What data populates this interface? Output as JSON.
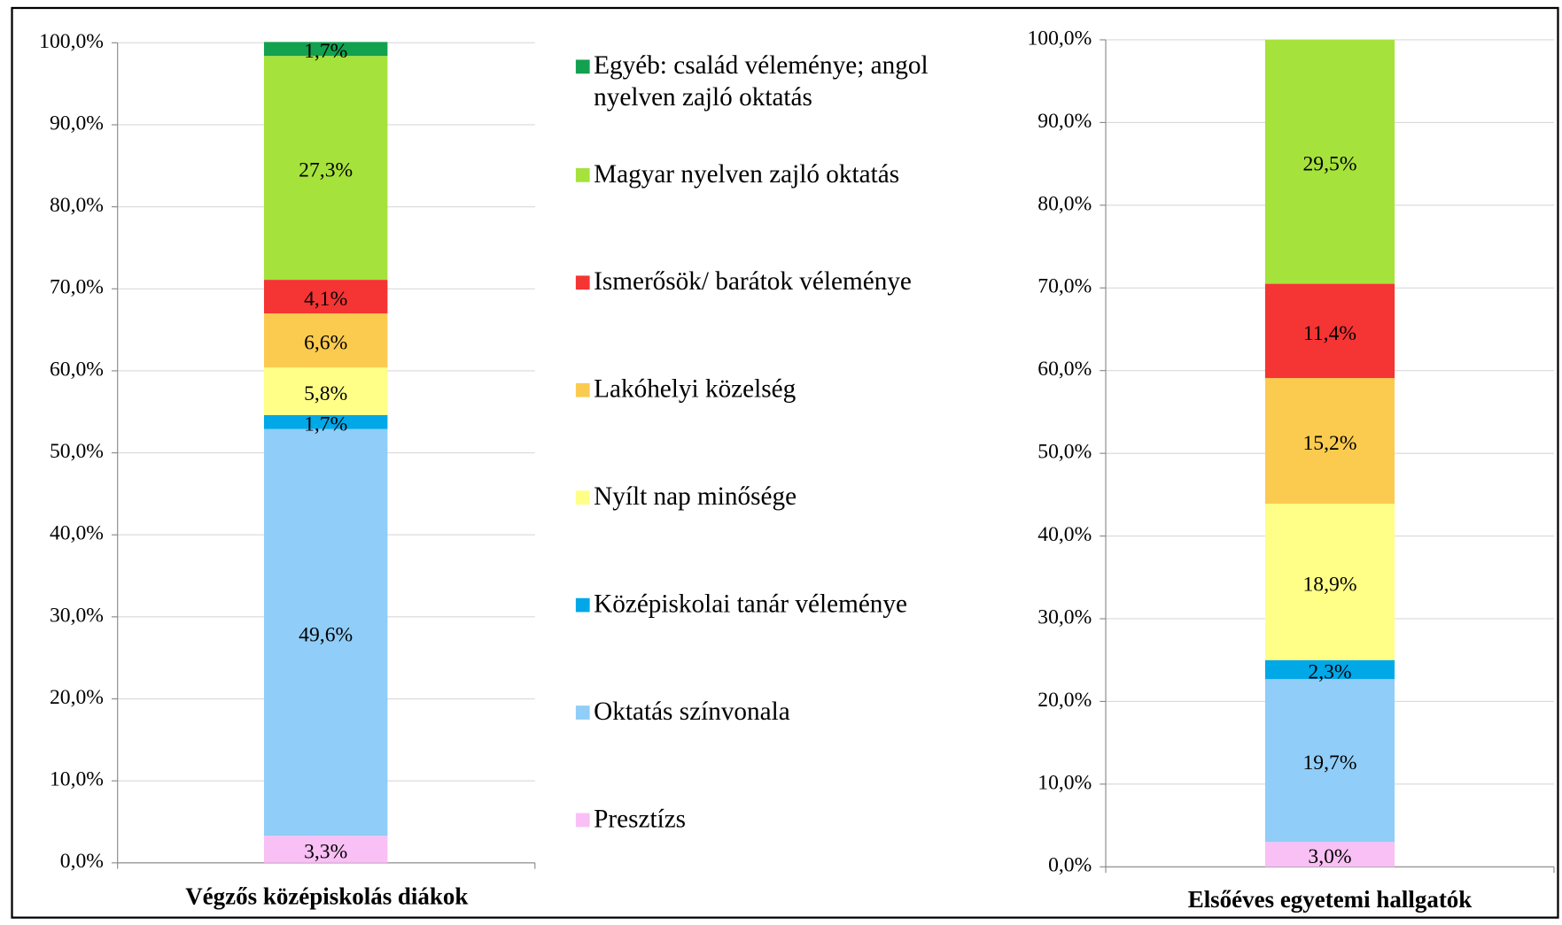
{
  "chart_data": [
    {
      "type": "bar",
      "stacked": true,
      "xlabel": "Végzős középiskolás diákok",
      "categories": [
        null
      ],
      "ylim": [
        0,
        100
      ],
      "yticks": [
        {
          "value": 0,
          "label": "0,0%"
        },
        {
          "value": 10,
          "label": "10,0%"
        },
        {
          "value": 20,
          "label": "20,0%"
        },
        {
          "value": 30,
          "label": "30,0%"
        },
        {
          "value": 40,
          "label": "40,0%"
        },
        {
          "value": 50,
          "label": "50,0%"
        },
        {
          "value": 60,
          "label": "60,0%"
        },
        {
          "value": 70,
          "label": "70,0%"
        },
        {
          "value": 80,
          "label": "80,0%"
        },
        {
          "value": 90,
          "label": "90,0%"
        },
        {
          "value": 100,
          "label": "100,0%"
        }
      ],
      "grid": true,
      "series": [
        {
          "name": "Presztízs",
          "color": "#f9c0f5",
          "values": [
            3.3
          ],
          "value_labels": [
            "3,3%"
          ]
        },
        {
          "name": "Oktatás színvonala",
          "color": "#90cdf8",
          "values": [
            49.6
          ],
          "value_labels": [
            "49,6%"
          ]
        },
        {
          "name": "Középiskolai tanár véleménye",
          "color": "#00a8e8",
          "values": [
            1.7
          ],
          "value_labels": [
            "1,7%"
          ]
        },
        {
          "name": "Nyílt nap minősége",
          "color": "#ffff88",
          "values": [
            5.8
          ],
          "value_labels": [
            "5,8%"
          ]
        },
        {
          "name": "Lakóhelyi közelség",
          "color": "#fbcb4f",
          "values": [
            6.6
          ],
          "value_labels": [
            "6,6%"
          ]
        },
        {
          "name": "Ismerősök/ barátok véleménye",
          "color": "#f53434",
          "values": [
            4.1
          ],
          "value_labels": [
            "4,1%"
          ]
        },
        {
          "name": "Magyar nyelven zajló oktatás",
          "color": "#a6e23c",
          "values": [
            27.3
          ],
          "value_labels": [
            "27,3%"
          ]
        },
        {
          "name": "Egyéb: család véleménye; angol nyelven zajló oktatás",
          "color": "#12a14f",
          "values": [
            1.7
          ],
          "value_labels": [
            "1,7%"
          ]
        }
      ]
    },
    {
      "type": "bar",
      "stacked": true,
      "xlabel": "Elsőéves egyetemi hallgatók",
      "categories": [
        null
      ],
      "ylim": [
        0,
        100
      ],
      "yticks": [
        {
          "value": 0,
          "label": "0,0%"
        },
        {
          "value": 10,
          "label": "10,0%"
        },
        {
          "value": 20,
          "label": "20,0%"
        },
        {
          "value": 30,
          "label": "30,0%"
        },
        {
          "value": 40,
          "label": "40,0%"
        },
        {
          "value": 50,
          "label": "50,0%"
        },
        {
          "value": 60,
          "label": "60,0%"
        },
        {
          "value": 70,
          "label": "70,0%"
        },
        {
          "value": 80,
          "label": "80,0%"
        },
        {
          "value": 90,
          "label": "90,0%"
        },
        {
          "value": 100,
          "label": "100,0%"
        }
      ],
      "grid": true,
      "series": [
        {
          "color": "#f9c0f5",
          "values": [
            3.0
          ],
          "value_labels": [
            "3,0%"
          ]
        },
        {
          "color": "#90cdf8",
          "values": [
            19.7
          ],
          "value_labels": [
            "19,7%"
          ]
        },
        {
          "color": "#00a8e8",
          "values": [
            2.3
          ],
          "value_labels": [
            "2,3%"
          ]
        },
        {
          "color": "#ffff88",
          "values": [
            18.9
          ],
          "value_labels": [
            "18,9%"
          ]
        },
        {
          "color": "#fbcb4f",
          "values": [
            15.2
          ],
          "value_labels": [
            "15,2%"
          ]
        },
        {
          "color": "#f53434",
          "values": [
            11.4
          ],
          "value_labels": [
            "11,4%"
          ]
        },
        {
          "color": "#a6e23c",
          "values": [
            29.5
          ],
          "value_labels": [
            "29,5%"
          ]
        }
      ]
    }
  ]
}
